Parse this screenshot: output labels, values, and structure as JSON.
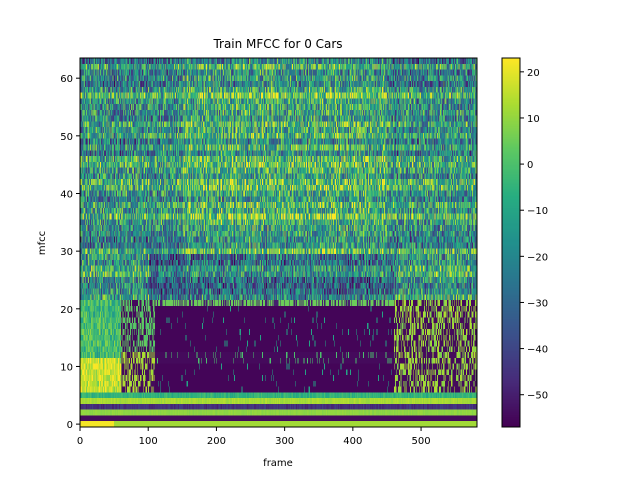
{
  "chart_data": {
    "type": "heatmap",
    "title": "Train MFCC for 0 Cars",
    "xlabel": "frame",
    "ylabel": "mfcc",
    "xlim": [
      0,
      582
    ],
    "ylim": [
      -0.5,
      63.5
    ],
    "n_frames": 582,
    "n_mfcc": 64,
    "colormap": "viridis",
    "color_range": [
      -57,
      23
    ],
    "xticks": [
      0,
      100,
      200,
      300,
      400,
      500
    ],
    "yticks": [
      0,
      10,
      20,
      30,
      40,
      50,
      60
    ],
    "colorbar_ticks": [
      20,
      10,
      0,
      -10,
      -20,
      -30,
      -40,
      -50
    ],
    "colorbar_tick_labels": [
      "20",
      "10",
      "0",
      "−10",
      "−20",
      "−30",
      "−40",
      "−50"
    ],
    "description_of_regions": {
      "rows_0_5": "bright bands (yellow/green), row 0 yellow for frames 0-50",
      "rows_6_20_frames_0_100": "green/yellow low-frequency energy",
      "rows_6_20_frames_100_460": "mostly dark (approx -55)",
      "rows_6_20_frames_460_582": "teal/green with dark gaps",
      "rows_21_63": "mixed teal/green/dark speckle, brighter near frames 150-450"
    }
  }
}
